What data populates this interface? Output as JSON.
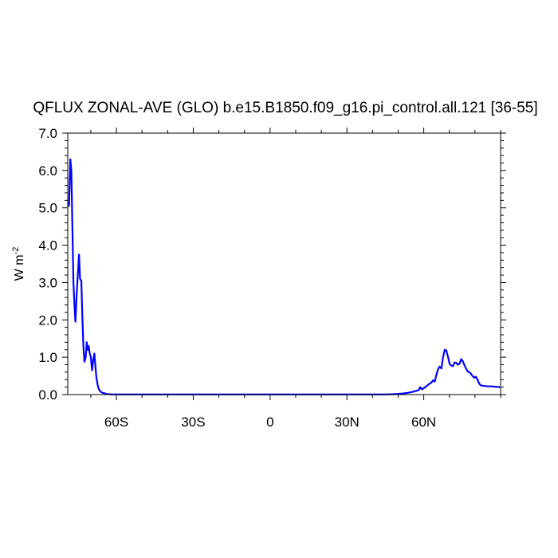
{
  "chart_data": {
    "type": "line",
    "title": "QFLUX ZONAL-AVE (GLO) b.e15.B1850.f09_g16.pi_control.all.121 [36-55]",
    "xlabel": "",
    "ylabel": "W m",
    "ylabel_superscript": "-2",
    "xlim": [
      -79,
      90
    ],
    "ylim": [
      0,
      7
    ],
    "xticks": [
      {
        "value": -60,
        "label": "60S"
      },
      {
        "value": -30,
        "label": "30S"
      },
      {
        "value": 0,
        "label": "0"
      },
      {
        "value": 30,
        "label": "30N"
      },
      {
        "value": 60,
        "label": "60N"
      }
    ],
    "yticks": [
      {
        "value": 0,
        "label": "0.0"
      },
      {
        "value": 1,
        "label": "1.0"
      },
      {
        "value": 2,
        "label": "2.0"
      },
      {
        "value": 3,
        "label": "3.0"
      },
      {
        "value": 4,
        "label": "4.0"
      },
      {
        "value": 5,
        "label": "5.0"
      },
      {
        "value": 6,
        "label": "6.0"
      },
      {
        "value": 7,
        "label": "7.0"
      }
    ],
    "grid": false,
    "series_color": "#0000ff",
    "series": [
      {
        "x": [
          -78.5,
          -78.0,
          -77.6,
          -77.2,
          -76.8,
          -76.4,
          -76.0,
          -75.5,
          -75.0,
          -74.6,
          -74.2,
          -73.7,
          -73.3,
          -72.9,
          -72.5,
          -72.0,
          -71.6,
          -71.2,
          -70.8,
          -70.4,
          -70.0,
          -69.5,
          -69.0,
          -68.6,
          -68.2,
          -67.8,
          -67.3,
          -66.9,
          -66.5,
          -66.0,
          -65.5,
          -65.0,
          -64.5,
          -64.0,
          -63.5,
          -63.0,
          -62.0,
          -60.5,
          -58.0,
          -50.0,
          -30.0,
          0.0,
          20.0,
          40.0,
          45.0,
          48.0,
          50.0,
          52.0,
          54.0,
          55.5,
          57.0,
          58.0,
          58.6,
          59.2,
          60.0,
          61.0,
          62.0,
          63.0,
          63.6,
          64.3,
          65.0,
          65.6,
          66.2,
          66.9,
          67.5,
          68.2,
          68.8,
          69.5,
          70.1,
          70.7,
          71.4,
          72.0,
          72.7,
          73.3,
          73.9,
          74.6,
          75.2,
          75.8,
          76.5,
          77.1,
          77.7,
          78.3,
          79.0,
          79.7,
          80.3,
          81.0,
          81.6,
          82.2,
          82.8,
          83.5,
          84.1,
          85.0,
          86.5,
          88.0,
          89.5
        ],
        "y": [
          5.05,
          6.3,
          6.0,
          4.5,
          3.0,
          2.4,
          1.95,
          2.7,
          3.3,
          3.75,
          3.1,
          3.05,
          2.1,
          1.3,
          0.88,
          1.0,
          1.4,
          1.2,
          1.3,
          1.1,
          1.0,
          0.65,
          0.95,
          1.1,
          0.75,
          0.45,
          0.25,
          0.15,
          0.1,
          0.07,
          0.05,
          0.04,
          0.03,
          0.02,
          0.015,
          0.01,
          0.005,
          0.005,
          0.005,
          0.005,
          0.005,
          0.005,
          0.005,
          0.005,
          0.005,
          0.01,
          0.02,
          0.03,
          0.05,
          0.07,
          0.1,
          0.12,
          0.2,
          0.14,
          0.17,
          0.22,
          0.28,
          0.32,
          0.38,
          0.35,
          0.55,
          0.68,
          0.75,
          0.7,
          1.0,
          1.2,
          1.18,
          1.0,
          0.82,
          0.78,
          0.76,
          0.86,
          0.85,
          0.8,
          0.82,
          0.95,
          0.9,
          0.8,
          0.7,
          0.62,
          0.6,
          0.57,
          0.5,
          0.45,
          0.48,
          0.4,
          0.3,
          0.25,
          0.24,
          0.23,
          0.23,
          0.22,
          0.22,
          0.21,
          0.2
        ]
      }
    ]
  }
}
